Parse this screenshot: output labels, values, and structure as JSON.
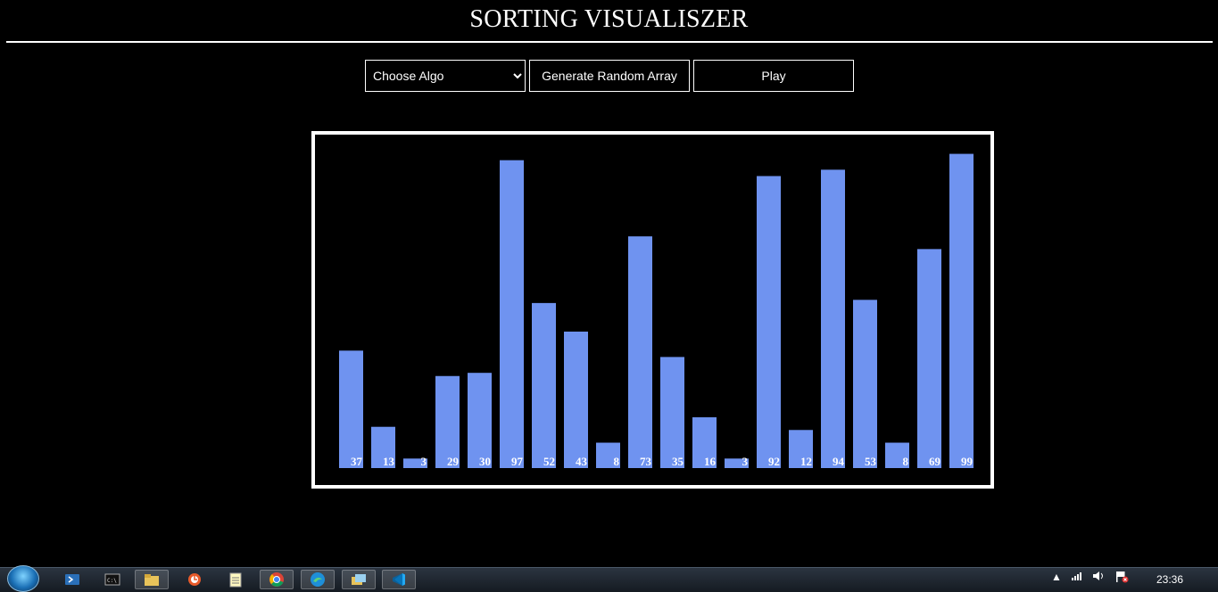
{
  "header": {
    "title": "SORTING VISUALISZER"
  },
  "controls": {
    "algo_select_value": "Choose Algo",
    "generate_label": "Generate Random Array",
    "play_label": "Play"
  },
  "colors": {
    "bar": "#6f93f0",
    "background": "#000000",
    "text": "#ffffff"
  },
  "chart_data": {
    "type": "bar",
    "values": [
      37,
      13,
      3,
      29,
      30,
      97,
      52,
      43,
      8,
      73,
      35,
      16,
      3,
      92,
      12,
      94,
      53,
      8,
      69,
      99
    ],
    "ylim": [
      0,
      100
    ]
  },
  "taskbar": {
    "icons": [
      "start-orb-icon",
      "powershell-icon",
      "cmd-icon",
      "file-explorer-icon",
      "app-icon",
      "notepad-icon",
      "chrome-icon",
      "edge-icon",
      "folders-icon",
      "vscode-icon"
    ],
    "tray_icons": [
      "show-hidden-icon",
      "network-icon",
      "volume-icon",
      "flag-icon"
    ],
    "clock": "23:36"
  }
}
